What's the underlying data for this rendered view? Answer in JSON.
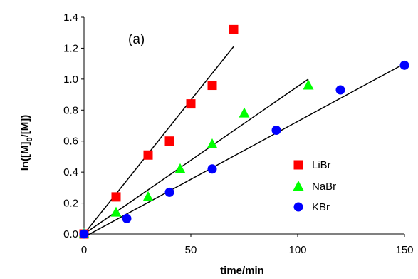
{
  "chart_data": {
    "type": "scatter",
    "panel_label": "(a)",
    "xlabel": "time/min",
    "ylabel": {
      "prefix": "ln([M]",
      "sub": "0",
      "suffix": "/[M])"
    },
    "xlim": [
      0,
      150
    ],
    "ylim": [
      0,
      1.4
    ],
    "x_ticks": [
      0,
      50,
      100,
      150
    ],
    "y_ticks": [
      "0.0",
      "0.2",
      "0.4",
      "0.6",
      "0.8",
      "1.0",
      "1.2",
      "1.4"
    ],
    "grid": false,
    "legend_position": "lower-right",
    "series": [
      {
        "name": "LiBr",
        "marker": "square",
        "color": "#ff0000",
        "points": [
          [
            0,
            0.0
          ],
          [
            15,
            0.24
          ],
          [
            30,
            0.51
          ],
          [
            40,
            0.6
          ],
          [
            50,
            0.84
          ],
          [
            60,
            0.96
          ],
          [
            70,
            1.32
          ]
        ],
        "fit_line": [
          [
            0,
            0.0
          ],
          [
            70,
            1.21
          ]
        ]
      },
      {
        "name": "NaBr",
        "marker": "triangle",
        "color": "#00ff00",
        "points": [
          [
            0,
            0.0
          ],
          [
            15,
            0.14
          ],
          [
            30,
            0.24
          ],
          [
            45,
            0.42
          ],
          [
            60,
            0.58
          ],
          [
            75,
            0.78
          ],
          [
            105,
            0.96
          ]
        ],
        "fit_line": [
          [
            0,
            0.0
          ],
          [
            105,
            1.0
          ]
        ]
      },
      {
        "name": "KBr",
        "marker": "circle",
        "color": "#0000ff",
        "points": [
          [
            0,
            0.0
          ],
          [
            20,
            0.1
          ],
          [
            40,
            0.27
          ],
          [
            60,
            0.42
          ],
          [
            90,
            0.67
          ],
          [
            120,
            0.93
          ],
          [
            150,
            1.09
          ]
        ],
        "fit_line": [
          [
            0,
            -0.02
          ],
          [
            150,
            1.1
          ]
        ]
      }
    ]
  }
}
